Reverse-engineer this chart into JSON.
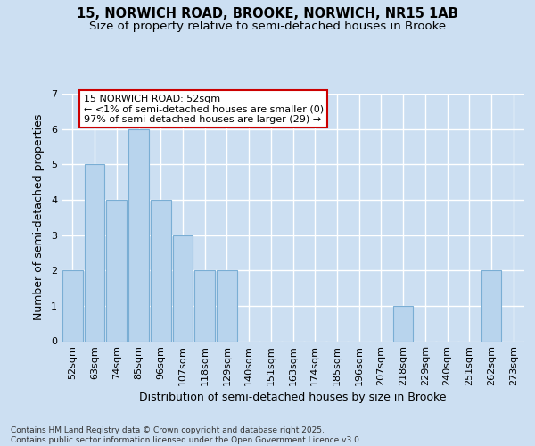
{
  "title_line1": "15, NORWICH ROAD, BROOKE, NORWICH, NR15 1AB",
  "title_line2": "Size of property relative to semi-detached houses in Brooke",
  "xlabel": "Distribution of semi-detached houses by size in Brooke",
  "ylabel": "Number of semi-detached properties",
  "categories": [
    "52sqm",
    "63sqm",
    "74sqm",
    "85sqm",
    "96sqm",
    "107sqm",
    "118sqm",
    "129sqm",
    "140sqm",
    "151sqm",
    "163sqm",
    "174sqm",
    "185sqm",
    "196sqm",
    "207sqm",
    "218sqm",
    "229sqm",
    "240sqm",
    "251sqm",
    "262sqm",
    "273sqm"
  ],
  "values": [
    2,
    5,
    4,
    6,
    4,
    3,
    2,
    2,
    0,
    0,
    0,
    0,
    0,
    0,
    0,
    1,
    0,
    0,
    0,
    2,
    0
  ],
  "bar_color": "#b8d4ed",
  "bar_edge_color": "#7aaed4",
  "annotation_text": "15 NORWICH ROAD: 52sqm\n← <1% of semi-detached houses are smaller (0)\n97% of semi-detached houses are larger (29) →",
  "annotation_box_facecolor": "#ffffff",
  "annotation_box_edgecolor": "#cc0000",
  "ylim": [
    0,
    7
  ],
  "yticks": [
    0,
    1,
    2,
    3,
    4,
    5,
    6,
    7
  ],
  "footnote": "Contains HM Land Registry data © Crown copyright and database right 2025.\nContains public sector information licensed under the Open Government Licence v3.0.",
  "bg_color": "#ccdff2",
  "grid_color": "#ffffff",
  "title_fontsize": 10.5,
  "subtitle_fontsize": 9.5,
  "tick_fontsize": 8,
  "label_fontsize": 9,
  "ann_fontsize": 8,
  "footnote_fontsize": 6.5
}
